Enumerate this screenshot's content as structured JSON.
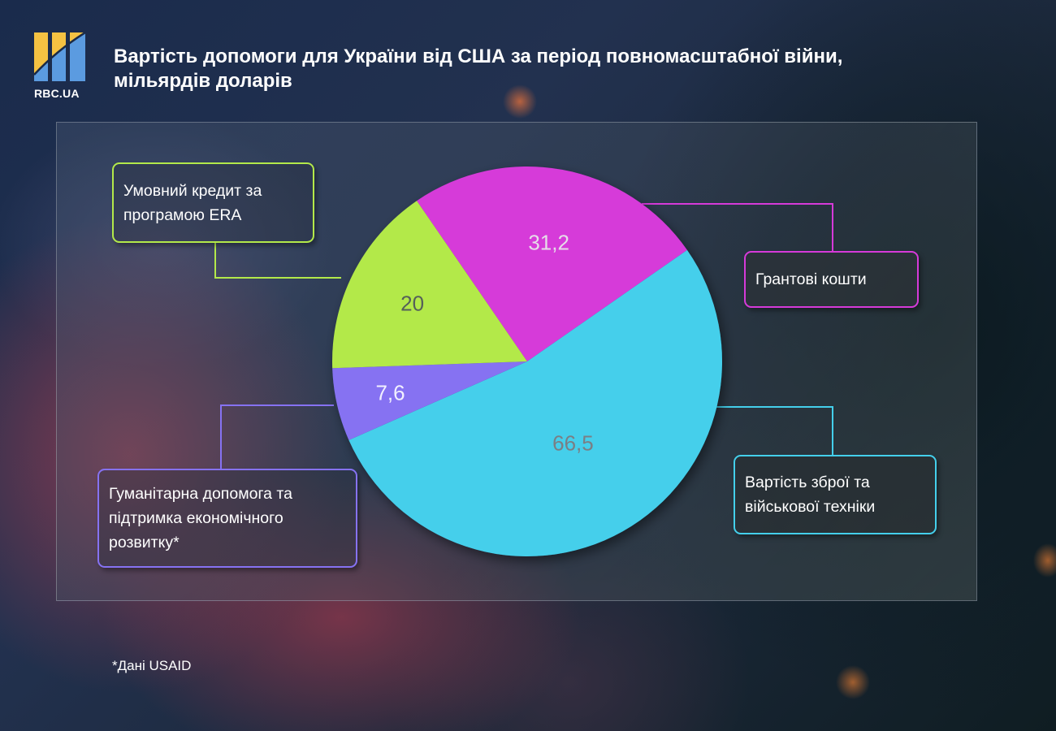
{
  "brand": {
    "name": "RBC.UA",
    "logo_colors": {
      "yellow": "#f5c242",
      "blue": "#5b9be0"
    }
  },
  "title": {
    "line1": "Вартість допомоги для України від США за період повномасштабної війни,",
    "line2": "мільярдів доларів"
  },
  "labels": {
    "era": {
      "line1": "Умовний кредит за",
      "line2": "програмою ERA"
    },
    "grants": {
      "line1": "Грантові кошти"
    },
    "humanitarian": {
      "line1": "Гуманітарна допомога та",
      "line2": "підтримка економічного",
      "line3": "розвитку*"
    },
    "weapons": {
      "line1": "Вартість зброї та",
      "line2": "військової техніки"
    }
  },
  "values_text": {
    "grants": "31,2",
    "era": "20",
    "humanitarian": "7,6",
    "weapons": "66,5"
  },
  "footnote": "*Дані USAID",
  "colors": {
    "grants": "#d63ad9",
    "weapons": "#44cfeb",
    "humanitarian": "#8672f2",
    "era": "#b3e94a"
  },
  "chart_data": {
    "type": "pie",
    "title": "Вартість допомоги для України від США за період повномасштабної війни, мільярдів доларів",
    "unit": "мільярдів доларів",
    "categories": [
      "Грантові кошти",
      "Вартість зброї та військової техніки",
      "Гуманітарна допомога та підтримка економічного розвитку*",
      "Умовний кредит за програмою ERA"
    ],
    "values": [
      31.2,
      66.5,
      7.6,
      20
    ],
    "colors": [
      "#d63ad9",
      "#44cfeb",
      "#8672f2",
      "#b3e94a"
    ],
    "legend": "callout boxes with connector lines",
    "footnote": "*Дані USAID"
  }
}
